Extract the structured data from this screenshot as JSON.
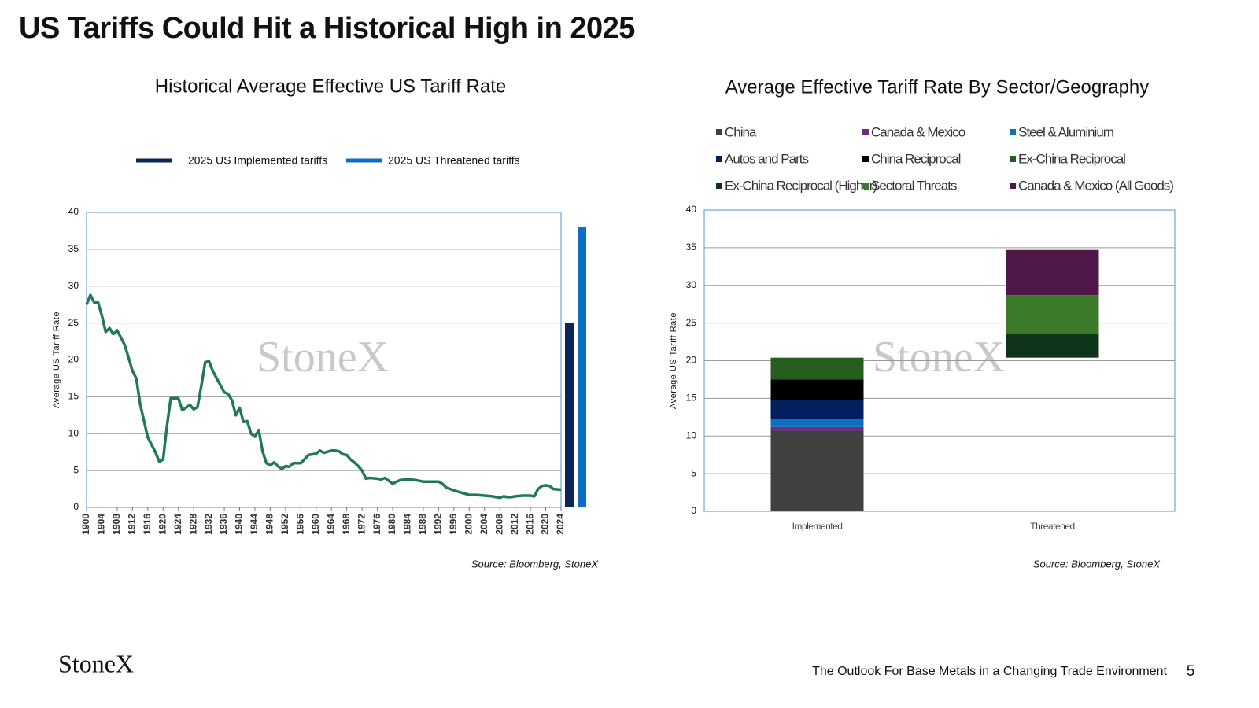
{
  "title": "US Tariffs Could Hit a Historical High in 2025",
  "footer": {
    "logo": "StoneX",
    "text": "The Outlook For Base Metals in a Changing Trade Environment",
    "page": "5"
  },
  "chart_data": [
    {
      "type": "line",
      "title": "Historical Average Effective US Tariff Rate",
      "y_label": "Average US Tariff Rate",
      "source": "Source: Bloomberg, StoneX",
      "watermark": "StoneX",
      "x": [
        1900,
        1901,
        1902,
        1903,
        1904,
        1905,
        1906,
        1907,
        1908,
        1910,
        1912,
        1913,
        1914,
        1916,
        1918,
        1919,
        1920,
        1921,
        1922,
        1924,
        1925,
        1926,
        1927,
        1928,
        1929,
        1930,
        1931,
        1932,
        1933,
        1934,
        1936,
        1937,
        1938,
        1939,
        1940,
        1941,
        1942,
        1943,
        1944,
        1945,
        1946,
        1947,
        1948,
        1949,
        1950,
        1951,
        1952,
        1953,
        1954,
        1956,
        1958,
        1960,
        1961,
        1962,
        1964,
        1965,
        1966,
        1967,
        1968,
        1969,
        1970,
        1971,
        1972,
        1973,
        1974,
        1976,
        1977,
        1978,
        1979,
        1980,
        1981,
        1982,
        1984,
        1986,
        1988,
        1990,
        1992,
        1993,
        1994,
        1996,
        1998,
        2000,
        2002,
        2004,
        2006,
        2008,
        2009,
        2010,
        2011,
        2012,
        2014,
        2016,
        2017,
        2018,
        2019,
        2020,
        2021,
        2022,
        2024
      ],
      "series": [
        {
          "color": "#237a52",
          "values": [
            27.5,
            28.8,
            27.8,
            27.8,
            26,
            23.8,
            24.3,
            23.5,
            24,
            22,
            18.5,
            17.5,
            14,
            9.5,
            7.5,
            6.2,
            6.5,
            11,
            14.8,
            14.8,
            13.2,
            13.5,
            13.9,
            13.3,
            13.6,
            16.5,
            19.7,
            19.8,
            18.5,
            17.5,
            15.6,
            15.4,
            14.5,
            12.5,
            13.5,
            11.6,
            11.7,
            10,
            9.6,
            10.5,
            7.6,
            6,
            5.7,
            6.1,
            5.6,
            5.2,
            5.6,
            5.5,
            6,
            6,
            7.1,
            7.3,
            7.7,
            7.4,
            7.7,
            7.7,
            7.6,
            7.2,
            7.1,
            6.5,
            6.1,
            5.6,
            5,
            3.9,
            4,
            3.9,
            3.8,
            4,
            3.6,
            3.2,
            3.5,
            3.7,
            3.8,
            3.7,
            3.5,
            3.5,
            3.5,
            3.2,
            2.7,
            2.3,
            2,
            1.7,
            1.7,
            1.6,
            1.5,
            1.3,
            1.5,
            1.4,
            1.4,
            1.5,
            1.6,
            1.6,
            1.5,
            2.5,
            2.9,
            3,
            2.9,
            2.5,
            2.4
          ]
        }
      ],
      "bars": [
        {
          "name": "2025 US Implemented tariffs",
          "color": "#0b2559",
          "value": 25
        },
        {
          "name": "2025 US Threatened tariffs",
          "color": "#0a6fc2",
          "value": 38
        }
      ],
      "xlim": [
        1900,
        2024
      ],
      "xticks": [
        1900,
        1904,
        1908,
        1912,
        1916,
        1920,
        1924,
        1928,
        1932,
        1936,
        1940,
        1944,
        1948,
        1952,
        1956,
        1960,
        1964,
        1968,
        1972,
        1976,
        1980,
        1984,
        1988,
        1992,
        1996,
        2000,
        2004,
        2008,
        2012,
        2016,
        2020,
        2024
      ],
      "ylim": [
        0,
        40
      ],
      "yticks": [
        0,
        5,
        10,
        15,
        20,
        25,
        30,
        35,
        40
      ],
      "grid": true
    },
    {
      "type": "waterfall",
      "title": "Average Effective Tariff Rate By Sector/Geography",
      "y_label": "Average US Tariff Rate",
      "source": "Source: Bloomberg, StoneX",
      "watermark": "StoneX",
      "categories": [
        "Implemented",
        "Threatened"
      ],
      "series": [
        {
          "name": "China",
          "color": "#404040",
          "values": [
            10.7,
            null
          ]
        },
        {
          "name": "Canada & Mexico",
          "color": "#6a2c91",
          "values": [
            0.5,
            null
          ]
        },
        {
          "name": "Steel & Aluminium",
          "color": "#0f6fc0",
          "values": [
            1.1,
            null
          ]
        },
        {
          "name": "Autos and Parts",
          "color": "#022060",
          "values": [
            2.5,
            null
          ]
        },
        {
          "name": "China Reciprocal",
          "color": "#000000",
          "values": [
            2.7,
            null
          ]
        },
        {
          "name": "Ex-China Reciprocal",
          "color": "#255e1f",
          "values": [
            2.9,
            null
          ]
        },
        {
          "name": "Ex-China Reciprocal (Higher)",
          "color": "#10341a",
          "values": [
            null,
            3.1
          ]
        },
        {
          "name": "Sectoral Threats",
          "color": "#3b7a28",
          "values": [
            null,
            5.2
          ]
        },
        {
          "name": "Canada & Mexico (All Goods)",
          "color": "#4f1848",
          "values": [
            null,
            6.0
          ]
        }
      ],
      "ylim": [
        0,
        40
      ],
      "yticks": [
        0,
        5,
        10,
        15,
        20,
        25,
        30,
        35,
        40
      ],
      "grid": true
    }
  ]
}
